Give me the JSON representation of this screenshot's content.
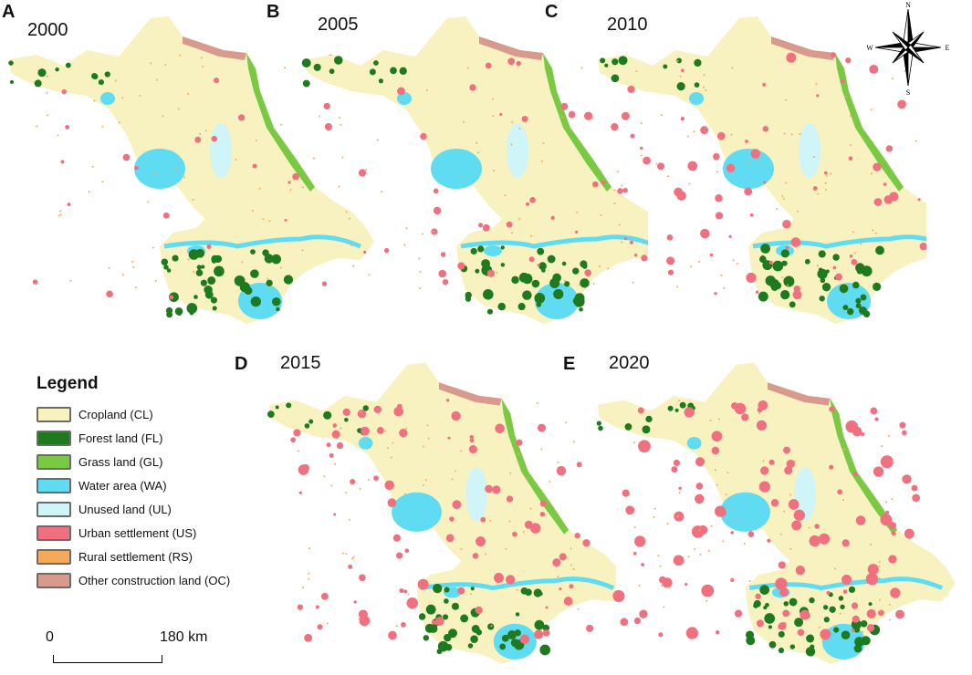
{
  "panels": [
    {
      "letter": "A",
      "year": "2000"
    },
    {
      "letter": "B",
      "year": "2005"
    },
    {
      "letter": "C",
      "year": "2010"
    },
    {
      "letter": "D",
      "year": "2015"
    },
    {
      "letter": "E",
      "year": "2020"
    }
  ],
  "legend": {
    "title": "Legend",
    "items": [
      {
        "label": "Cropland (CL)",
        "color": "#f7f2bf"
      },
      {
        "label": "Forest land (FL)",
        "color": "#1f7a1f"
      },
      {
        "label": "Grass land (GL)",
        "color": "#7ac943"
      },
      {
        "label": "Water area (WA)",
        "color": "#5fdcf2"
      },
      {
        "label": "Unused land (UL)",
        "color": "#cff5f8"
      },
      {
        "label": "Urban settlement (US)",
        "color": "#f0707f"
      },
      {
        "label": "Rural settlement (RS)",
        "color": "#f7a95a"
      },
      {
        "label": "Other construction land (OC)",
        "color": "#d99a8e"
      }
    ]
  },
  "scale": {
    "start": "0",
    "end": "180 km"
  },
  "compass": {
    "n": "N",
    "s": "S",
    "e": "E",
    "w": "W"
  }
}
